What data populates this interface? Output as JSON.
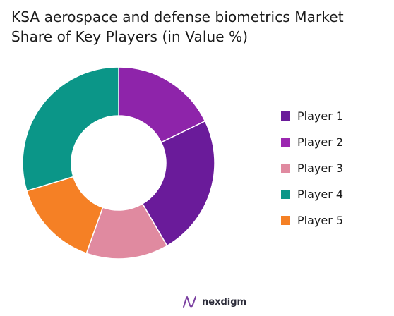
{
  "chart_data": {
    "type": "pie",
    "title": "KSA aerospace and defense biometrics Market Share of Key Players (in Value %)",
    "categories": [
      "Player 1",
      "Player 2",
      "Player 3",
      "Player 4",
      "Player 5"
    ],
    "values": [
      24,
      18,
      14,
      30,
      15
    ],
    "series_order": [
      "Player 2",
      "Player 1",
      "Player 3",
      "Player 5",
      "Player 4"
    ],
    "colors": {
      "Player 1": "#6a1b9a",
      "Player 2": "#8e24aa",
      "Player 3": "#e08aa0",
      "Player 4": "#0b9688",
      "Player 5": "#f58025"
    },
    "legend_position": "right"
  },
  "legend": [
    {
      "label": "Player 1",
      "color": "#6a1b9a"
    },
    {
      "label": "Player 2",
      "color": "#9b27b0"
    },
    {
      "label": "Player 3",
      "color": "#e08aa0"
    },
    {
      "label": "Player 4",
      "color": "#0b9688"
    },
    {
      "label": "Player 5",
      "color": "#f58025"
    }
  ],
  "brand": {
    "name": "nexdigm",
    "icon": "nexdigm-logo-icon"
  }
}
